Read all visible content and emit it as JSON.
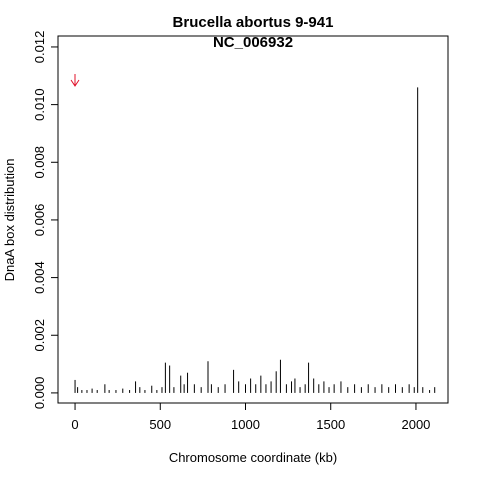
{
  "chart_data": {
    "type": "spike",
    "title": "Brucella abortus 9-941",
    "subtitle": "NC_006932",
    "x_label": "Chromosome coordinate (kb)",
    "y_label": "DnaA box distribution",
    "color": "#000000",
    "xlim": [
      -100,
      2188
    ],
    "ylim": [
      -0.00035,
      0.01238
    ],
    "xticks": [
      0,
      500,
      1000,
      1500,
      2000
    ],
    "yticks": [
      {
        "value": 0,
        "label": "0.000"
      },
      {
        "value": 0.002,
        "label": "0.002"
      },
      {
        "value": 0.004,
        "label": "0.004"
      },
      {
        "value": 0.006,
        "label": "0.006"
      },
      {
        "value": 0.008,
        "label": "0.008"
      },
      {
        "value": 0.01,
        "label": "0.010"
      },
      {
        "value": 0.012,
        "label": "0.012"
      }
    ],
    "x": [
      0,
      15,
      40,
      70,
      100,
      130,
      175,
      200,
      240,
      280,
      320,
      355,
      380,
      410,
      450,
      480,
      510,
      530,
      555,
      580,
      620,
      640,
      660,
      700,
      740,
      780,
      800,
      840,
      880,
      930,
      960,
      1000,
      1030,
      1060,
      1090,
      1120,
      1150,
      1180,
      1205,
      1240,
      1270,
      1290,
      1320,
      1350,
      1370,
      1400,
      1430,
      1460,
      1490,
      1520,
      1560,
      1600,
      1640,
      1680,
      1720,
      1760,
      1800,
      1840,
      1880,
      1920,
      1960,
      1990,
      2010,
      2040,
      2080,
      2110
    ],
    "values": [
      0.00045,
      0.0002,
      0.0001,
      0.0001,
      0.00015,
      0.0001,
      0.0003,
      0.0001,
      0.0001,
      0.00015,
      0.0001,
      0.0004,
      0.0002,
      0.0001,
      0.00025,
      0.0001,
      0.0002,
      0.00105,
      0.00095,
      0.0002,
      0.0006,
      0.0003,
      0.0007,
      0.0003,
      0.0002,
      0.0011,
      0.0003,
      0.0002,
      0.0003,
      0.0008,
      0.0004,
      0.0003,
      0.0005,
      0.0003,
      0.0006,
      0.0003,
      0.0004,
      0.00075,
      0.00115,
      0.0003,
      0.0004,
      0.0005,
      0.0002,
      0.0003,
      0.00105,
      0.0005,
      0.0003,
      0.0004,
      0.0002,
      0.0003,
      0.0004,
      0.0002,
      0.0003,
      0.0002,
      0.0003,
      0.0002,
      0.0003,
      0.0002,
      0.0003,
      0.0002,
      0.0003,
      0.0002,
      0.0106,
      0.0002,
      0.0001,
      0.0002
    ]
  }
}
